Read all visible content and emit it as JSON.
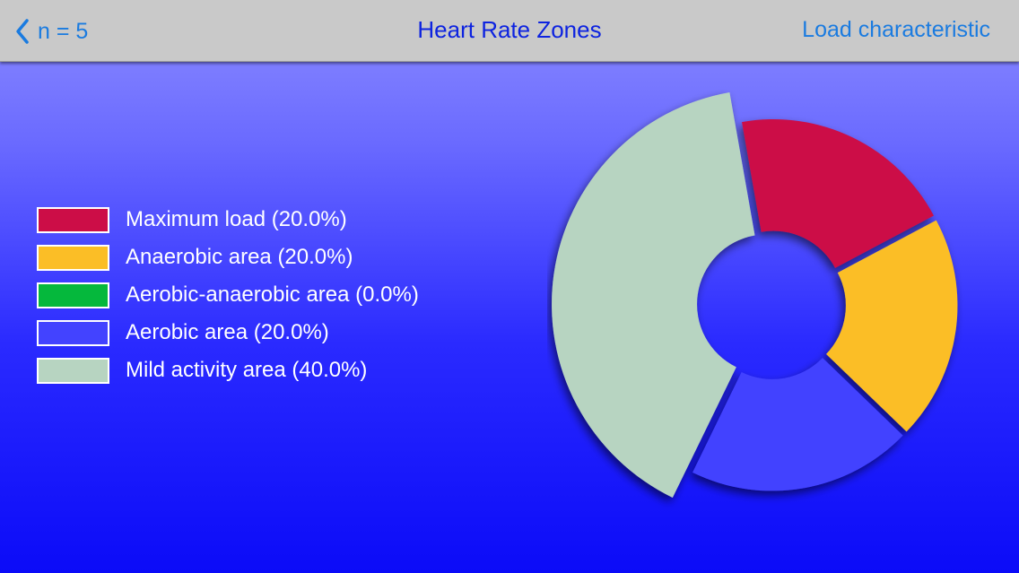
{
  "navbar": {
    "back_label": "n = 5",
    "title": "Heart Rate Zones",
    "right_label": "Load characteristic"
  },
  "legend": [
    {
      "label": "Maximum load (20.0%)",
      "color": "#cc0d47"
    },
    {
      "label": "Anaerobic area (20.0%)",
      "color": "#fbbe26"
    },
    {
      "label": "Aerobic-anaerobic area (0.0%)",
      "color": "#05b83c"
    },
    {
      "label": "Aerobic area (20.0%)",
      "color": "#4343ff"
    },
    {
      "label": "Mild activity area (40.0%)",
      "color": "#b7d4c1"
    }
  ],
  "chart_data": {
    "type": "pie",
    "style": "donut-exploded",
    "categories": [
      "Maximum load",
      "Anaerobic area",
      "Aerobic-anaerobic area",
      "Aerobic area",
      "Mild activity area"
    ],
    "values": [
      20.0,
      20.0,
      0.0,
      20.0,
      40.0
    ],
    "unit": "%",
    "colors": [
      "#cc0d47",
      "#fbbe26",
      "#05b83c",
      "#4343ff",
      "#b7d4c1"
    ]
  }
}
